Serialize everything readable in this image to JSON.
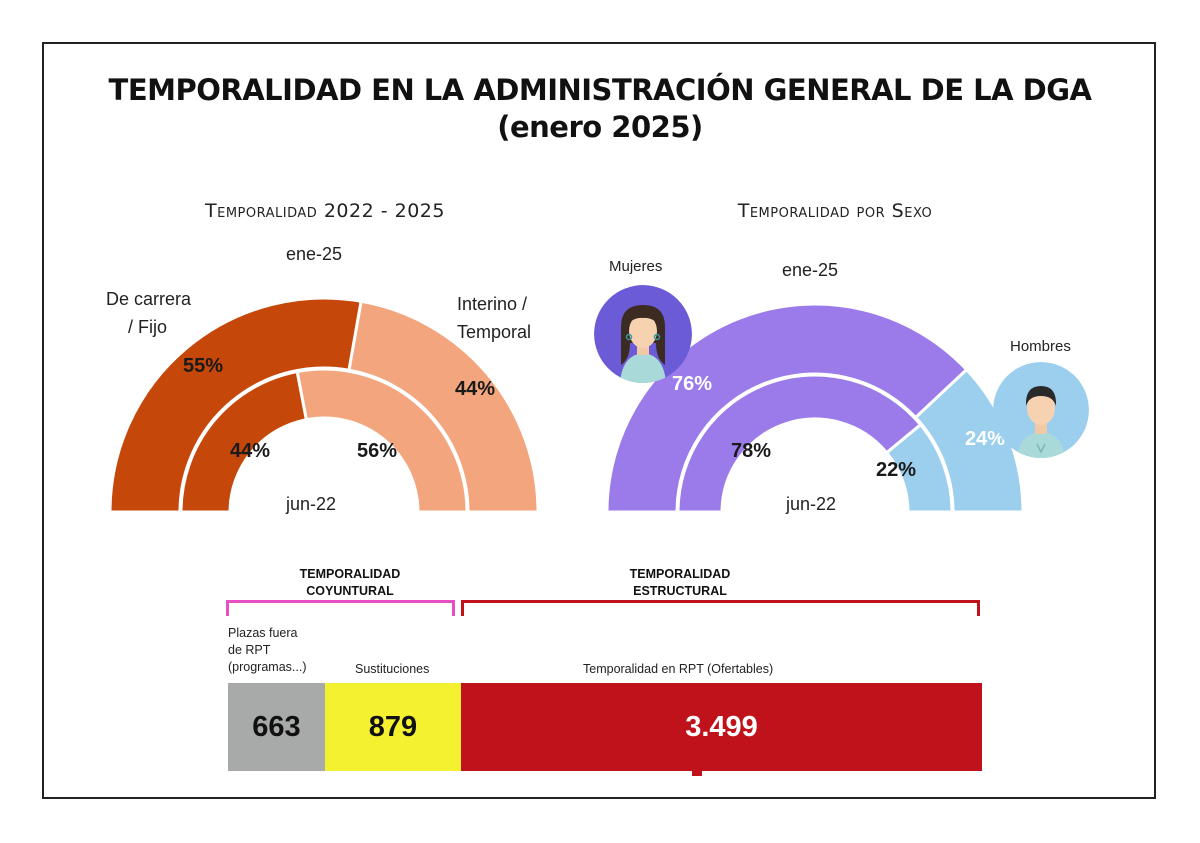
{
  "title": "TEMPORALIDAD EN LA ADMINISTRACIÓN GENERAL DE LA DGA",
  "subtitle": "(enero 2025)",
  "colors": {
    "carrera": "#c6470a",
    "interino": "#f3a57d",
    "mujeres": "#9b7bea",
    "hombres": "#9ccfee",
    "otros": "#a8a9a9",
    "sustituciones": "#f4f230",
    "rpt": "#c0121b",
    "coyuntural_bracket": "#e84fc4",
    "estructural_bracket": "#c0121b"
  },
  "chart_data": [
    {
      "type": "pie",
      "variant": "half-donut",
      "title": "Temporalidad 2022 - 2025",
      "outer_label": "ene-25",
      "inner_label": "jun-22",
      "categories": [
        "De carrera / Fijo",
        "Interino / Temporal"
      ],
      "series": [
        {
          "name": "ene-25",
          "values": [
            55,
            44
          ],
          "labels": [
            "55%",
            "44%"
          ]
        },
        {
          "name": "jun-22",
          "values": [
            44,
            56
          ],
          "labels": [
            "44%",
            "56%"
          ]
        }
      ],
      "category_labels": {
        "carrera": "De carrera / Fijo",
        "interino": "Interino / Temporal"
      }
    },
    {
      "type": "pie",
      "variant": "half-donut",
      "title": "Temporalidad por Sexo",
      "outer_label": "ene-25",
      "inner_label": "jun-22",
      "categories": [
        "Mujeres",
        "Hombres"
      ],
      "series": [
        {
          "name": "ene-25",
          "values": [
            76,
            24
          ],
          "labels": [
            "76%",
            "24%"
          ]
        },
        {
          "name": "jun-22",
          "values": [
            78,
            22
          ],
          "labels": [
            "78%",
            "22%"
          ]
        }
      ]
    },
    {
      "type": "bar",
      "variant": "stacked-horizontal",
      "categories": [
        "Plazas fuera de RPT (programas...)",
        "Sustituciones",
        "Temporalidad en RPT (Ofertables)"
      ],
      "values": [
        663,
        879,
        3499
      ],
      "value_labels": [
        "663",
        "879",
        "3.499"
      ],
      "groups": [
        {
          "label": "TEMPORALIDAD COYUNTURAL",
          "members": [
            "Plazas fuera de RPT (programas...)",
            "Sustituciones"
          ]
        },
        {
          "label": "TEMPORALIDAD ESTRUCTURAL",
          "members": [
            "Temporalidad en RPT (Ofertables)"
          ]
        }
      ]
    }
  ],
  "text": {
    "left_title": "Temporalidad 2022 - 2025",
    "right_title": "Temporalidad por Sexo",
    "ene25_left": "ene-25",
    "jun22_left": "jun-22",
    "ene25_right": "ene-25",
    "jun22_right": "jun-22",
    "carrera_l1": "De carrera",
    "carrera_l2": "/ Fijo",
    "interino_l1": "Interino /",
    "interino_l2": "Temporal",
    "mujeres": "Mujeres",
    "hombres": "Hombres",
    "p55": "55%",
    "p44o": "44%",
    "p44i": "44%",
    "p56": "56%",
    "p76": "76%",
    "p24": "24%",
    "p78": "78%",
    "p22": "22%",
    "coy_l1": "TEMPORALIDAD",
    "coy_l2": "COYUNTURAL",
    "est_l1": "TEMPORALIDAD",
    "est_l2": "ESTRUCTURAL",
    "plazas_l1": "Plazas fuera",
    "plazas_l2": "de RPT",
    "plazas_l3": "(programas...)",
    "sustituciones": "Sustituciones",
    "rpt": "Temporalidad en RPT (Ofertables)",
    "v663": "663",
    "v879": "879",
    "v3499": "3.499"
  }
}
